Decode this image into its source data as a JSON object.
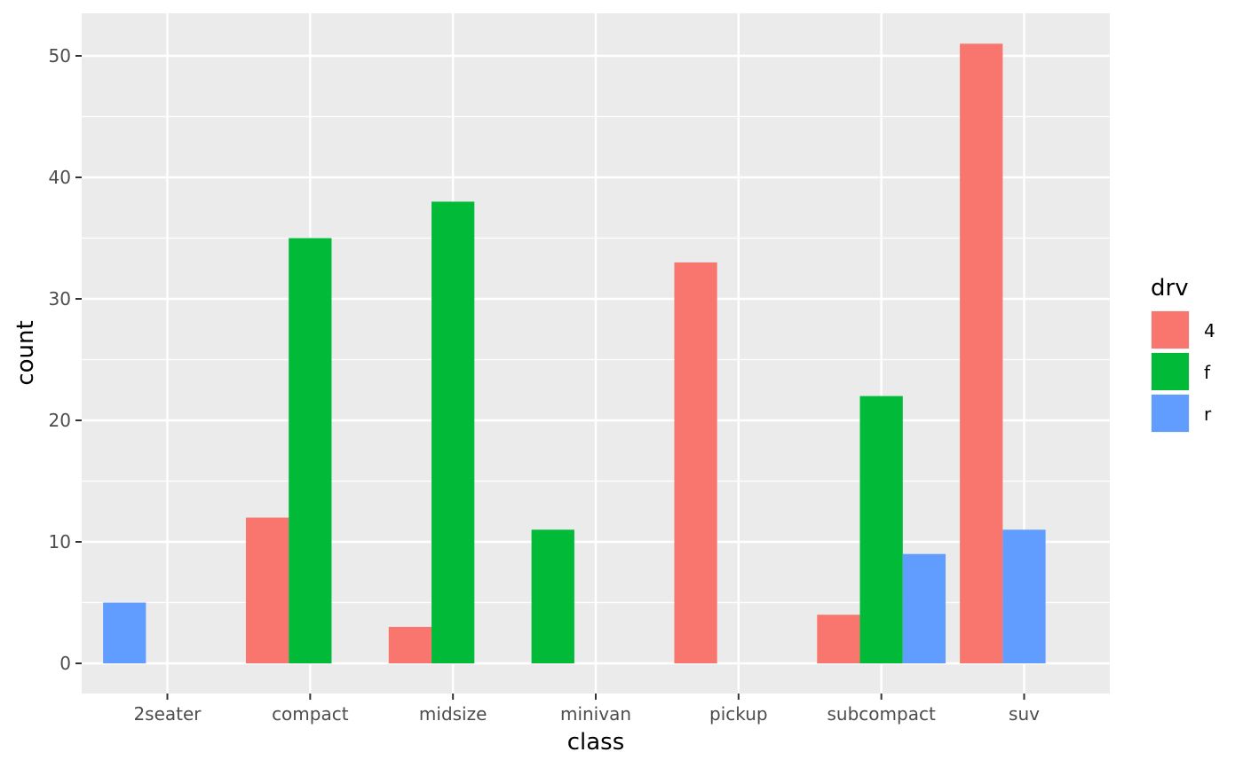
{
  "chart_data": {
    "type": "bar",
    "position": "dodge",
    "xlabel": "class",
    "ylabel": "count",
    "categories": [
      "2seater",
      "compact",
      "midsize",
      "minivan",
      "pickup",
      "subcompact",
      "suv"
    ],
    "yticks": [
      0,
      10,
      20,
      30,
      40,
      50
    ],
    "ylim": [
      0,
      53.55
    ],
    "grid": true,
    "legend": {
      "title": "drv",
      "placement": "right",
      "entries": [
        "4",
        "f",
        "r"
      ]
    },
    "series": [
      {
        "name": "4",
        "color": "#F8766D",
        "values": [
          0,
          12,
          3,
          0,
          33,
          4,
          51
        ]
      },
      {
        "name": "f",
        "color": "#00BA38",
        "values": [
          0,
          35,
          38,
          11,
          0,
          22,
          0
        ]
      },
      {
        "name": "r",
        "color": "#619CFF",
        "values": [
          5,
          0,
          0,
          0,
          0,
          9,
          11
        ]
      }
    ]
  }
}
